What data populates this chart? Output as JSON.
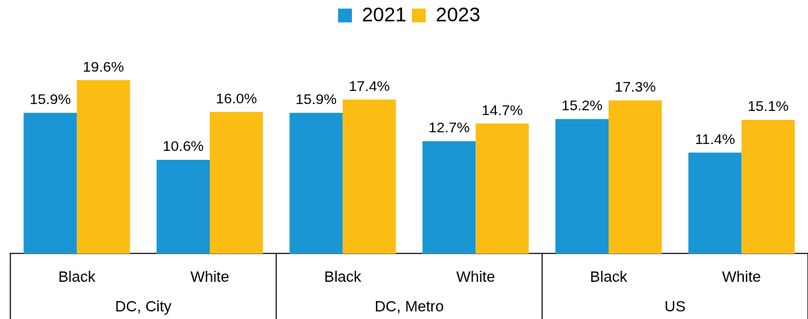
{
  "chart_data": {
    "type": "bar",
    "categories": [
      "Black",
      "White",
      "Black",
      "White",
      "Black",
      "White"
    ],
    "series": [
      {
        "name": "2021",
        "color": "#1a96d4",
        "values": [
          15.9,
          10.6,
          15.9,
          12.7,
          15.2,
          11.4
        ],
        "value_labels": [
          "15.9%",
          "10.6%",
          "15.9%",
          "12.7%",
          "15.2%",
          "11.4%"
        ]
      },
      {
        "name": "2023",
        "color": "#fbbd13",
        "values": [
          19.6,
          16.0,
          17.4,
          14.7,
          17.3,
          15.1
        ],
        "value_labels": [
          "19.6%",
          "16.0%",
          "17.4%",
          "14.7%",
          "17.3%",
          "15.1%"
        ]
      }
    ],
    "annotations": [
      "DC, City",
      "DC, Metro",
      "US"
    ],
    "legend": "top",
    "grid": false
  }
}
